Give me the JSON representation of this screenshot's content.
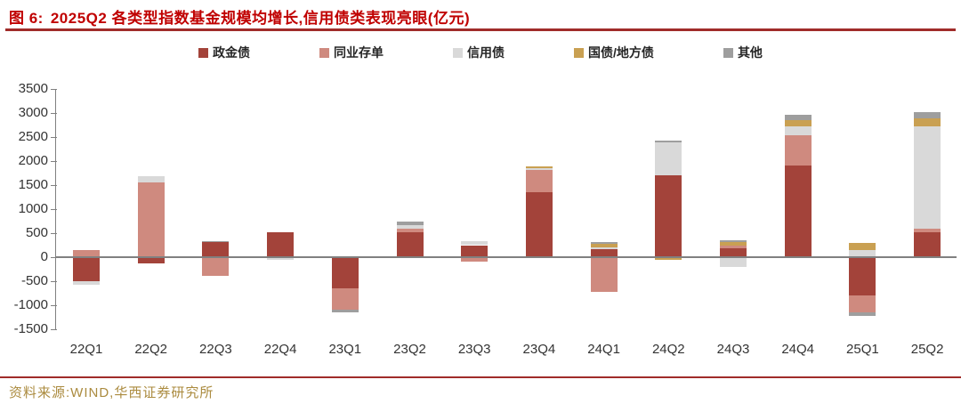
{
  "header": {
    "figure_label": "图 6:",
    "title": "2025Q2 各类型指数基金规模均增长,信用债类表现亮眼(亿元)",
    "title_color": "#c00000",
    "rule_color": "#a02c2a"
  },
  "footer": {
    "source_text": "资料来源:WIND,华西证券研究所",
    "text_color": "#ab8b3f",
    "rule_color": "#a02c2a"
  },
  "chart_data": {
    "type": "bar",
    "stacked": true,
    "title": "2025Q2 各类型指数基金规模均增长,信用债类表现亮眼(亿元)",
    "unit": "亿元",
    "xlabel": "",
    "ylabel": "",
    "ylim": [
      -1500,
      3500
    ],
    "ytick_step": 500,
    "grid": false,
    "legend_position": "top",
    "axis_color": "#808080",
    "tick_label_color": "#333333",
    "categories": [
      "22Q1",
      "22Q2",
      "22Q3",
      "22Q4",
      "23Q1",
      "23Q2",
      "23Q3",
      "23Q4",
      "24Q1",
      "24Q2",
      "24Q3",
      "24Q4",
      "25Q1",
      "25Q2"
    ],
    "series": [
      {
        "name": "政金债",
        "color": "#a3433a",
        "values": [
          -500,
          -130,
          320,
          520,
          -650,
          520,
          250,
          1350,
          170,
          1700,
          190,
          1900,
          -800,
          520
        ]
      },
      {
        "name": "同业存单",
        "color": "#cf8a7f",
        "values": [
          150,
          1560,
          -390,
          0,
          -440,
          70,
          -100,
          460,
          -720,
          0,
          50,
          630,
          -350,
          70
        ]
      },
      {
        "name": "信用债",
        "color": "#d9d9d9",
        "values": [
          -80,
          120,
          0,
          -60,
          0,
          80,
          90,
          50,
          30,
          680,
          -200,
          200,
          150,
          2130
        ]
      },
      {
        "name": "国债/地方债",
        "color": "#c9a052",
        "values": [
          0,
          0,
          0,
          0,
          0,
          0,
          0,
          30,
          70,
          -50,
          70,
          130,
          150,
          160
        ]
      },
      {
        "name": "其他",
        "color": "#9e9e9e",
        "values": [
          0,
          0,
          20,
          0,
          -60,
          80,
          0,
          0,
          40,
          50,
          40,
          110,
          -70,
          140
        ]
      }
    ]
  }
}
